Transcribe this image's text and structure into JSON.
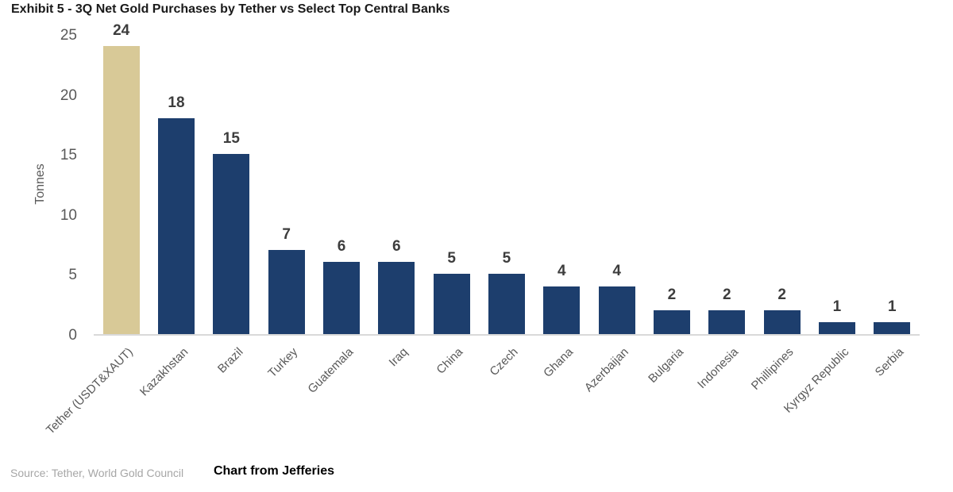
{
  "header": {
    "title": "Exhibit 5 - 3Q Net Gold Purchases by Tether vs Select Top Central Banks"
  },
  "footer": {
    "source": "Source: Tether, World Gold Council",
    "caption": "Chart from Jefferies"
  },
  "chart_data": {
    "type": "bar",
    "title": "Exhibit 5 - 3Q Net Gold Purchases by Tether vs Select Top Central Banks",
    "xlabel": "",
    "ylabel": "Tonnes",
    "ylim": [
      0,
      25
    ],
    "yticks": [
      0,
      5,
      10,
      15,
      20,
      25
    ],
    "grid": false,
    "legend": false,
    "categories": [
      "Tether (USDT&XAUT)",
      "Kazakhstan",
      "Brazil",
      "Turkey",
      "Guatemala",
      "Iraq",
      "China",
      "Czech",
      "Ghana",
      "Azerbaijan",
      "Bulgaria",
      "Indonesia",
      "Phillipines",
      "Kyrgyz Republic",
      "Serbia"
    ],
    "values": [
      24,
      18,
      15,
      7,
      6,
      6,
      5,
      5,
      4,
      4,
      2,
      2,
      2,
      1,
      1
    ],
    "highlight_index": 0,
    "colors": {
      "highlight_bar": "#d8c997",
      "default_bar": "#1d3e6d",
      "axis_line": "#d9d9d9",
      "tick_label": "#595959",
      "value_label": "#3d3d3d",
      "title": "#1a1a1a",
      "source_text": "#a6a6a6",
      "caption_text": "#000000"
    }
  }
}
